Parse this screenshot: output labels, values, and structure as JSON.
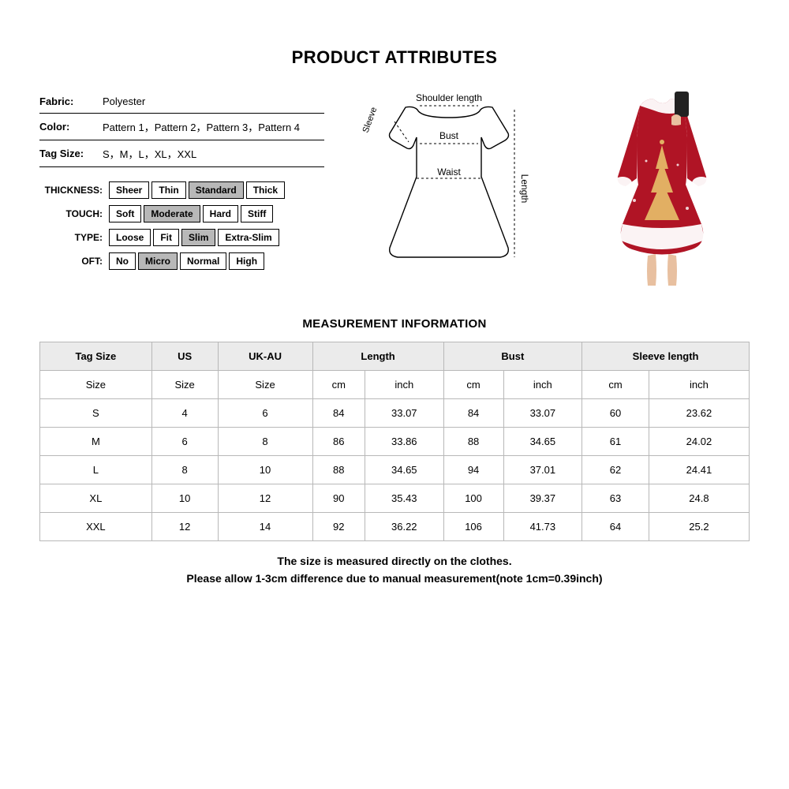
{
  "title": "PRODUCT ATTRIBUTES",
  "attrs": {
    "fabric_label": "Fabric:",
    "fabric": "Polyester",
    "color_label": "Color:",
    "color": "Pattern 1，Pattern 2，Pattern 3，Pattern 4",
    "tagsize_label": "Tag Size:",
    "tagsize": "S，M，L，XL，XXL"
  },
  "selectors": [
    {
      "label": "THICKNESS:",
      "options": [
        {
          "t": "Sheer",
          "sel": false
        },
        {
          "t": "Thin",
          "sel": false
        },
        {
          "t": "Standard",
          "sel": true
        },
        {
          "t": "Thick",
          "sel": false
        }
      ]
    },
    {
      "label": "TOUCH:",
      "options": [
        {
          "t": "Soft",
          "sel": false
        },
        {
          "t": "Moderate",
          "sel": true
        },
        {
          "t": "Hard",
          "sel": false
        },
        {
          "t": "Stiff",
          "sel": false
        }
      ]
    },
    {
      "label": "TYPE:",
      "options": [
        {
          "t": "Loose",
          "sel": false
        },
        {
          "t": "Fit",
          "sel": false
        },
        {
          "t": "Slim",
          "sel": true
        },
        {
          "t": "Extra-Slim",
          "sel": false
        }
      ]
    },
    {
      "label": "OFT:",
      "options": [
        {
          "t": "No",
          "sel": false
        },
        {
          "t": "Micro",
          "sel": true
        },
        {
          "t": "Normal",
          "sel": false
        },
        {
          "t": "High",
          "sel": false
        }
      ]
    }
  ],
  "diagram_labels": {
    "shoulder": "Shoulder length",
    "sleeve": "Sleeve",
    "bust": "Bust",
    "waist": "Waist",
    "length": "Length"
  },
  "product_visual": {
    "dress_color": "#b01425",
    "trim_color": "#ffffff",
    "tree_color": "#e8c06a"
  },
  "meas_header": "MEASUREMENT INFORMATION",
  "table": {
    "head1": [
      "Tag Size",
      "US",
      "UK-AU",
      "Length",
      "Bust",
      "Sleeve length"
    ],
    "head2": [
      "Size",
      "Size",
      "Size",
      "cm",
      "inch",
      "cm",
      "inch",
      "cm",
      "inch"
    ],
    "rows": [
      [
        "S",
        "4",
        "6",
        "84",
        "33.07",
        "84",
        "33.07",
        "60",
        "23.62"
      ],
      [
        "M",
        "6",
        "8",
        "86",
        "33.86",
        "88",
        "34.65",
        "61",
        "24.02"
      ],
      [
        "L",
        "8",
        "10",
        "88",
        "34.65",
        "94",
        "37.01",
        "62",
        "24.41"
      ],
      [
        "XL",
        "10",
        "12",
        "90",
        "35.43",
        "100",
        "39.37",
        "63",
        "24.8"
      ],
      [
        "XXL",
        "12",
        "14",
        "92",
        "36.22",
        "106",
        "41.73",
        "64",
        "25.2"
      ]
    ]
  },
  "notes": {
    "l1": "The size is measured directly on the clothes.",
    "l2": "Please allow 1-3cm difference due to manual measurement(note 1cm=0.39inch)"
  }
}
